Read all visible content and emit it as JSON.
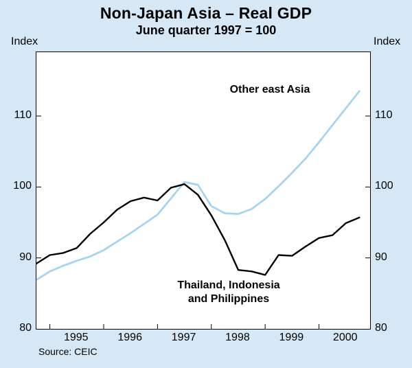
{
  "title": "Non-Japan Asia – Real GDP",
  "subtitle": "June quarter 1997 = 100",
  "axis": {
    "index_left": "Index",
    "index_right": "Index"
  },
  "annotations": {
    "other_east_asia": "Other east Asia",
    "tip_line1": "Thailand, Indonesia",
    "tip_line2": "and Philippines"
  },
  "source": "Source: CEIC",
  "colors": {
    "background": "#d6e7f5",
    "plot_background": "#ffffff",
    "plot_border": "#000000",
    "blue_line": "#a6d4f0",
    "black_line": "#000000"
  },
  "chart_data": {
    "type": "line",
    "title": "Non-Japan Asia – Real GDP",
    "subtitle": "June quarter 1997 = 100",
    "ylabel": "Index",
    "grid": false,
    "x_start": 1994.75,
    "x_step": 0.25,
    "xlim": [
      1994.75,
      2000.95
    ],
    "ylim": [
      80,
      119
    ],
    "yticks": [
      80,
      90,
      100,
      110
    ],
    "xticks": [
      1995,
      1996,
      1997,
      1998,
      1999,
      2000
    ],
    "xtick_labels": [
      {
        "label": "1995",
        "center": 1995.5
      },
      {
        "label": "1996",
        "center": 1996.5
      },
      {
        "label": "1997",
        "center": 1997.5
      },
      {
        "label": "1998",
        "center": 1998.5
      },
      {
        "label": "1999",
        "center": 1999.5
      },
      {
        "label": "2000",
        "center": 2000.5
      }
    ],
    "series": [
      {
        "name": "Other east Asia",
        "color": "#a6d4f0",
        "stroke_width": 2.8,
        "values": [
          86.9,
          88.1,
          88.9,
          89.6,
          90.2,
          91.1,
          92.3,
          93.5,
          94.8,
          96.1,
          98.4,
          100.7,
          100.3,
          97.3,
          96.3,
          96.2,
          96.9,
          98.3,
          100.1,
          102.0,
          104.0,
          106.3,
          108.7,
          111.1,
          113.5
        ]
      },
      {
        "name": "Thailand, Indonesia and Philippines",
        "color": "#000000",
        "stroke_width": 2.4,
        "values": [
          89.2,
          90.4,
          90.7,
          91.4,
          93.4,
          95.0,
          96.8,
          98.0,
          98.5,
          98.1,
          99.9,
          100.4,
          98.9,
          96.0,
          92.5,
          88.3,
          88.1,
          87.6,
          90.4,
          90.3,
          91.6,
          92.8,
          93.2,
          94.9,
          95.7
        ]
      }
    ]
  }
}
